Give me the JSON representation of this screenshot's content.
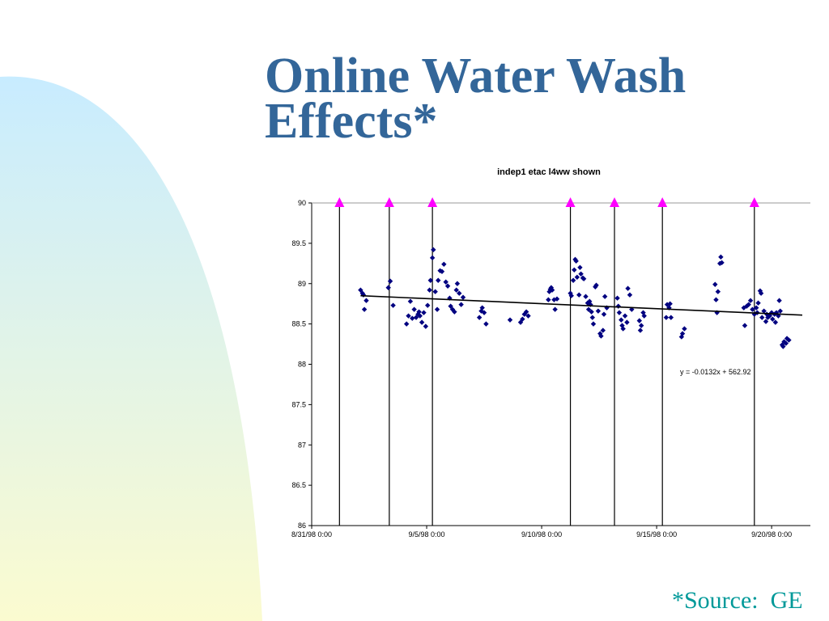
{
  "slide": {
    "title_line1": "Online Water Wash",
    "title_line2": "Effects*",
    "source_note": "*Source:  GE",
    "colors": {
      "title": "#336699",
      "source": "#009999",
      "bg_gradient_top": "#c8ecff",
      "bg_gradient_bottom": "#fbfbd0",
      "markers": "#ff00ff",
      "points": "#000080"
    }
  },
  "chart_data": {
    "type": "scatter",
    "title": "indep1 etac l4ww shown",
    "xlabel": "",
    "ylabel": "",
    "ylim": [
      86,
      90
    ],
    "yticks": [
      86,
      86.5,
      87,
      87.5,
      88,
      88.5,
      89,
      89.5,
      90
    ],
    "xlim": [
      "1998-08-31 00:00",
      "1998-09-21 08:00"
    ],
    "xticks": [
      "8/31/98 0:00",
      "9/5/98 0:00",
      "9/10/98 0:00",
      "9/15/98 0:00",
      "9/20/98 0:00"
    ],
    "xtick_dates": [
      "1998-08-31",
      "1998-09-05",
      "1998-09-10",
      "1998-09-15",
      "1998-09-20"
    ],
    "grid": false,
    "legend": "none",
    "water_wash_events": [
      "1998-09-01 05:00",
      "1998-09-03 09:00",
      "1998-09-05 06:00",
      "1998-09-11 06:00",
      "1998-09-13 04:00",
      "1998-09-15 06:00",
      "1998-09-19 06:00"
    ],
    "trendline": {
      "equation": "y = -0.0132x + 562.92",
      "start": [
        "1998-09-02 03:00",
        88.85
      ],
      "end": [
        "1998-09-21 08:00",
        88.61
      ]
    },
    "series": [
      {
        "points": [
          [
            "1998-09-02 03:00",
            88.92
          ],
          [
            "1998-09-02 05:00",
            88.88
          ],
          [
            "1998-09-02 06:00",
            88.86
          ],
          [
            "1998-09-02 07:00",
            88.68
          ],
          [
            "1998-09-02 09:00",
            88.79
          ],
          [
            "1998-09-03 08:00",
            88.95
          ],
          [
            "1998-09-03 10:00",
            89.03
          ],
          [
            "1998-09-03 13:00",
            88.73
          ],
          [
            "1998-09-04 03:00",
            88.5
          ],
          [
            "1998-09-04 05:00",
            88.6
          ],
          [
            "1998-09-04 07:00",
            88.78
          ],
          [
            "1998-09-04 09:00",
            88.57
          ],
          [
            "1998-09-04 11:00",
            88.68
          ],
          [
            "1998-09-04 13:00",
            88.58
          ],
          [
            "1998-09-04 15:00",
            88.62
          ],
          [
            "1998-09-04 16:00",
            88.65
          ],
          [
            "1998-09-04 17:00",
            88.6
          ],
          [
            "1998-09-04 19:00",
            88.52
          ],
          [
            "1998-09-04 21:00",
            88.64
          ],
          [
            "1998-09-04 23:00",
            88.47
          ],
          [
            "1998-09-05 01:00",
            88.73
          ],
          [
            "1998-09-05 03:00",
            88.92
          ],
          [
            "1998-09-05 04:00",
            89.04
          ],
          [
            "1998-09-05 06:00",
            89.32
          ],
          [
            "1998-09-05 07:00",
            89.42
          ],
          [
            "1998-09-05 09:00",
            88.9
          ],
          [
            "1998-09-05 11:00",
            88.68
          ],
          [
            "1998-09-05 12:00",
            89.04
          ],
          [
            "1998-09-05 14:00",
            89.16
          ],
          [
            "1998-09-05 16:00",
            89.15
          ],
          [
            "1998-09-05 18:00",
            89.24
          ],
          [
            "1998-09-05 20:00",
            89.02
          ],
          [
            "1998-09-05 22:00",
            88.97
          ],
          [
            "1998-09-06 00:00",
            88.82
          ],
          [
            "1998-09-06 01:00",
            88.72
          ],
          [
            "1998-09-06 03:00",
            88.68
          ],
          [
            "1998-09-06 05:00",
            88.65
          ],
          [
            "1998-09-06 07:00",
            88.92
          ],
          [
            "1998-09-06 08:00",
            89.0
          ],
          [
            "1998-09-06 10:00",
            88.88
          ],
          [
            "1998-09-06 12:00",
            88.74
          ],
          [
            "1998-09-06 14:00",
            88.83
          ],
          [
            "1998-09-07 07:00",
            88.58
          ],
          [
            "1998-09-07 09:00",
            88.66
          ],
          [
            "1998-09-07 10:00",
            88.7
          ],
          [
            "1998-09-07 12:00",
            88.64
          ],
          [
            "1998-09-07 14:00",
            88.5
          ],
          [
            "1998-09-08 15:00",
            88.55
          ],
          [
            "1998-09-09 02:00",
            88.52
          ],
          [
            "1998-09-09 04:00",
            88.56
          ],
          [
            "1998-09-09 06:00",
            88.62
          ],
          [
            "1998-09-09 08:00",
            88.65
          ],
          [
            "1998-09-09 10:00",
            88.6
          ],
          [
            "1998-09-10 07:00",
            88.8
          ],
          [
            "1998-09-10 08:00",
            88.9
          ],
          [
            "1998-09-10 09:00",
            88.93
          ],
          [
            "1998-09-10 10:00",
            88.95
          ],
          [
            "1998-09-10 11:00",
            88.92
          ],
          [
            "1998-09-10 13:00",
            88.8
          ],
          [
            "1998-09-10 14:00",
            88.68
          ],
          [
            "1998-09-10 16:00",
            88.81
          ],
          [
            "1998-09-11 06:00",
            88.88
          ],
          [
            "1998-09-11 07:00",
            88.85
          ],
          [
            "1998-09-11 09:00",
            89.04
          ],
          [
            "1998-09-11 10:00",
            89.17
          ],
          [
            "1998-09-11 11:00",
            89.3
          ],
          [
            "1998-09-11 12:00",
            89.28
          ],
          [
            "1998-09-11 13:00",
            89.08
          ],
          [
            "1998-09-11 15:00",
            88.86
          ],
          [
            "1998-09-11 16:00",
            89.2
          ],
          [
            "1998-09-11 17:00",
            89.12
          ],
          [
            "1998-09-11 19:00",
            89.07
          ],
          [
            "1998-09-11 20:00",
            89.06
          ],
          [
            "1998-09-11 22:00",
            88.84
          ],
          [
            "1998-09-12 00:00",
            88.76
          ],
          [
            "1998-09-12 01:00",
            88.68
          ],
          [
            "1998-09-12 02:00",
            88.78
          ],
          [
            "1998-09-12 03:00",
            88.74
          ],
          [
            "1998-09-12 04:00",
            88.65
          ],
          [
            "1998-09-12 05:00",
            88.58
          ],
          [
            "1998-09-12 06:00",
            88.5
          ],
          [
            "1998-09-12 08:00",
            88.96
          ],
          [
            "1998-09-12 09:00",
            88.98
          ],
          [
            "1998-09-12 11:00",
            88.66
          ],
          [
            "1998-09-12 13:00",
            88.38
          ],
          [
            "1998-09-12 14:00",
            88.35
          ],
          [
            "1998-09-12 16:00",
            88.42
          ],
          [
            "1998-09-12 17:00",
            88.62
          ],
          [
            "1998-09-12 18:00",
            88.84
          ],
          [
            "1998-09-12 20:00",
            88.7
          ],
          [
            "1998-09-13 07:00",
            88.82
          ],
          [
            "1998-09-13 08:00",
            88.72
          ],
          [
            "1998-09-13 09:00",
            88.64
          ],
          [
            "1998-09-13 11:00",
            88.55
          ],
          [
            "1998-09-13 12:00",
            88.48
          ],
          [
            "1998-09-13 13:00",
            88.44
          ],
          [
            "1998-09-13 15:00",
            88.6
          ],
          [
            "1998-09-13 17:00",
            88.52
          ],
          [
            "1998-09-13 18:00",
            88.94
          ],
          [
            "1998-09-13 20:00",
            88.86
          ],
          [
            "1998-09-13 22:00",
            88.68
          ],
          [
            "1998-09-14 06:00",
            88.54
          ],
          [
            "1998-09-14 07:00",
            88.42
          ],
          [
            "1998-09-14 08:00",
            88.48
          ],
          [
            "1998-09-14 10:00",
            88.64
          ],
          [
            "1998-09-14 11:00",
            88.6
          ],
          [
            "1998-09-15 10:00",
            88.58
          ],
          [
            "1998-09-15 11:00",
            88.74
          ],
          [
            "1998-09-15 13:00",
            88.7
          ],
          [
            "1998-09-15 14:00",
            88.75
          ],
          [
            "1998-09-15 15:00",
            88.58
          ],
          [
            "1998-09-16 02:00",
            88.34
          ],
          [
            "1998-09-16 03:00",
            88.38
          ],
          [
            "1998-09-16 05:00",
            88.44
          ],
          [
            "1998-09-17 13:00",
            88.99
          ],
          [
            "1998-09-17 14:00",
            88.8
          ],
          [
            "1998-09-17 15:00",
            88.64
          ],
          [
            "1998-09-17 16:00",
            88.9
          ],
          [
            "1998-09-17 18:00",
            89.25
          ],
          [
            "1998-09-17 19:00",
            89.33
          ],
          [
            "1998-09-17 20:00",
            89.26
          ],
          [
            "1998-09-18 19:00",
            88.7
          ],
          [
            "1998-09-18 20:00",
            88.48
          ],
          [
            "1998-09-18 22:00",
            88.72
          ],
          [
            "1998-09-19 00:00",
            88.74
          ],
          [
            "1998-09-19 02:00",
            88.79
          ],
          [
            "1998-09-19 04:00",
            88.68
          ],
          [
            "1998-09-19 06:00",
            88.62
          ],
          [
            "1998-09-19 08:00",
            88.7
          ],
          [
            "1998-09-19 09:00",
            88.64
          ],
          [
            "1998-09-19 10:00",
            88.76
          ],
          [
            "1998-09-19 12:00",
            88.91
          ],
          [
            "1998-09-19 13:00",
            88.88
          ],
          [
            "1998-09-19 14:00",
            88.58
          ],
          [
            "1998-09-19 16:00",
            88.66
          ],
          [
            "1998-09-19 18:00",
            88.53
          ],
          [
            "1998-09-19 19:00",
            88.62
          ],
          [
            "1998-09-19 20:00",
            88.58
          ],
          [
            "1998-09-19 22:00",
            88.6
          ],
          [
            "1998-09-20 00:00",
            88.64
          ],
          [
            "1998-09-20 01:00",
            88.56
          ],
          [
            "1998-09-20 03:00",
            88.62
          ],
          [
            "1998-09-20 04:00",
            88.52
          ],
          [
            "1998-09-20 05:00",
            88.64
          ],
          [
            "1998-09-20 07:00",
            88.6
          ],
          [
            "1998-09-20 08:00",
            88.79
          ],
          [
            "1998-09-20 09:00",
            88.66
          ],
          [
            "1998-09-20 11:00",
            88.24
          ],
          [
            "1998-09-20 12:00",
            88.22
          ],
          [
            "1998-09-20 13:00",
            88.28
          ],
          [
            "1998-09-20 15:00",
            88.26
          ],
          [
            "1998-09-20 16:00",
            88.32
          ],
          [
            "1998-09-20 18:00",
            88.3
          ]
        ]
      }
    ]
  }
}
